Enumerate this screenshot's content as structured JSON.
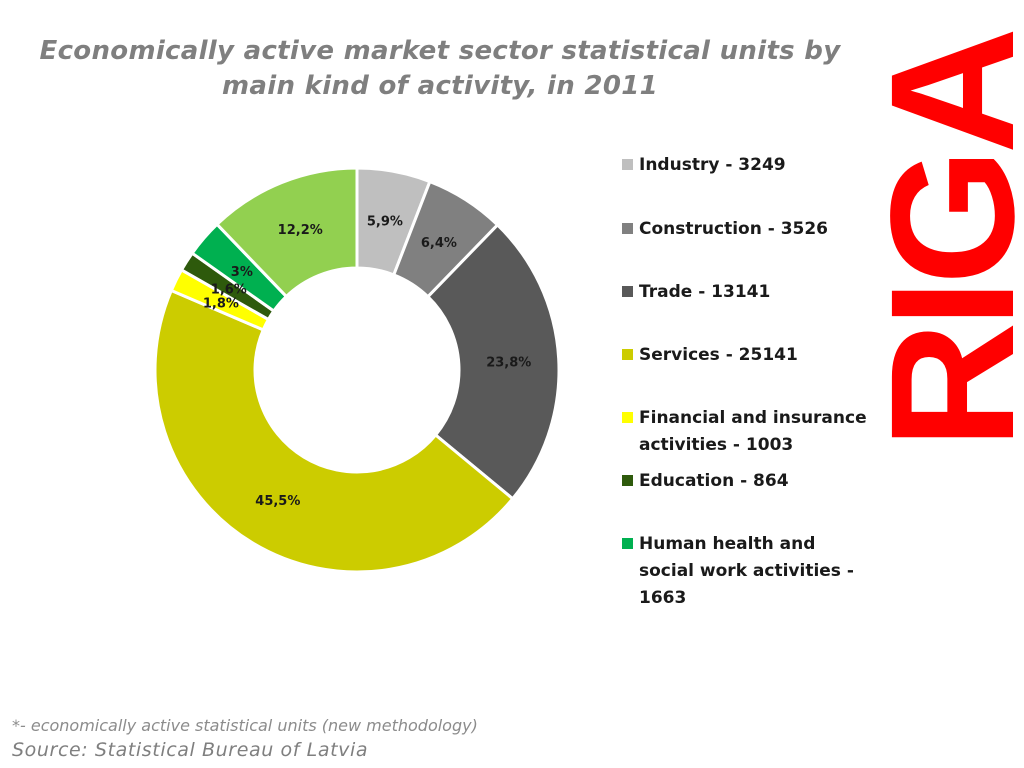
{
  "chart_data": {
    "type": "pie",
    "title": "Economically active market sector statistical units by main kind of activity, in 2011",
    "slices": [
      {
        "name": "Industry - 3249",
        "value": 3249,
        "percent_label": "5,9%",
        "color": "#bfbfbf"
      },
      {
        "name": "Construction - 3526",
        "value": 3526,
        "percent_label": "6,4%",
        "color": "#808080"
      },
      {
        "name": "Trade - 13141",
        "value": 13141,
        "percent_label": "23,8%",
        "color": "#595959"
      },
      {
        "name": "Services - 25141",
        "value": 25141,
        "percent_label": "45,5%",
        "color": "#cccc00"
      },
      {
        "name": "Financial and insurance activities - 1003",
        "value": 1003,
        "percent_label": "1,8%",
        "color": "#ffff00"
      },
      {
        "name": "Education - 864",
        "value": 864,
        "percent_label": "1,6%",
        "color": "#2e5a0c"
      },
      {
        "name": "Human health and social work activities - 1663",
        "value": 1663,
        "percent_label": "3%",
        "color": "#00b050"
      },
      {
        "name": "",
        "value": 6740,
        "percent_label": "12,2%",
        "color": "#92d050"
      }
    ],
    "legend_position": "right",
    "donut": true
  },
  "brand": {
    "text": "RIGA",
    "color": "#ff0000"
  },
  "footnote": "*- economically active statistical units (new methodology)",
  "source": "Source: Statistical Bureau of Latvia"
}
